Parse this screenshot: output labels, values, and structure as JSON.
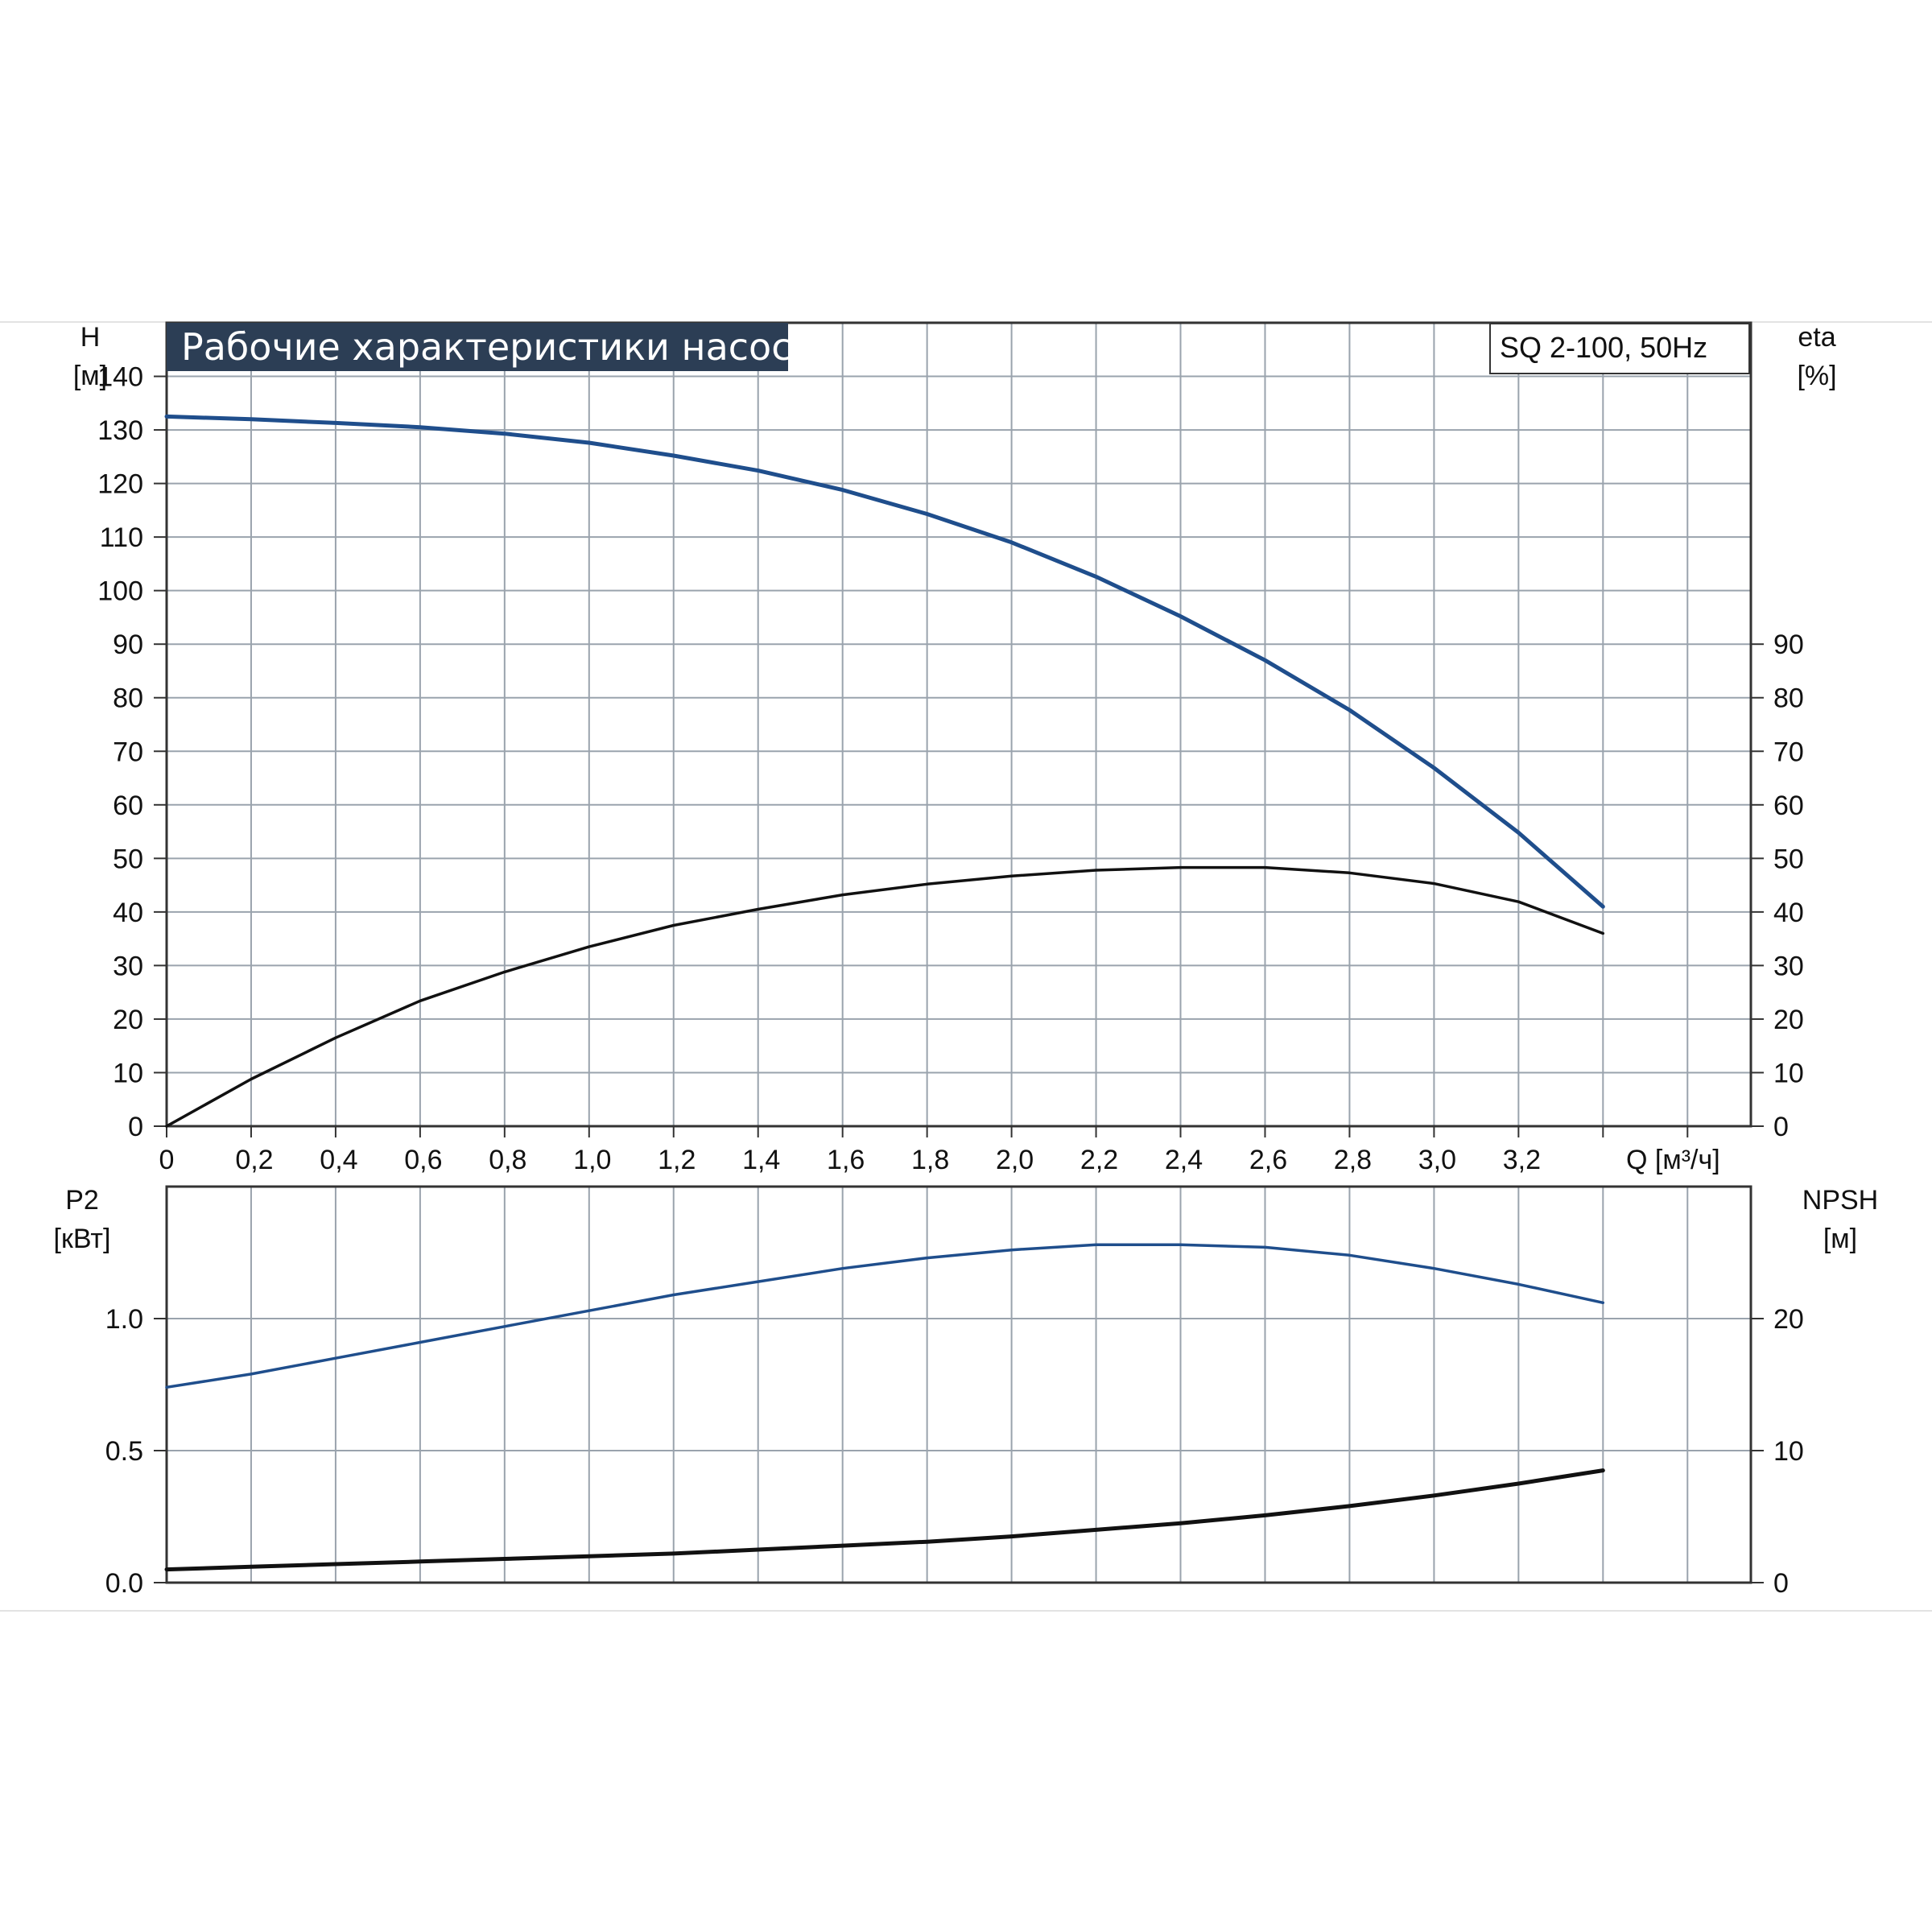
{
  "chart_data": [
    {
      "type": "line",
      "title": "Рабочие характеристики насоса",
      "model": "SQ 2-100, 50Hz",
      "xlabel": "Q [м³/ч]",
      "left_axis": {
        "label_line1": "H",
        "label_line2": "[м]",
        "ticks": [
          "0",
          "10",
          "20",
          "30",
          "40",
          "50",
          "60",
          "70",
          "80",
          "90",
          "100",
          "110",
          "120",
          "130",
          "140"
        ],
        "ylim": [
          0,
          150
        ]
      },
      "right_axis": {
        "label_line1": "eta",
        "label_line2": "[%]",
        "ticks": [
          "0",
          "10",
          "20",
          "30",
          "40",
          "50",
          "60",
          "70",
          "80",
          "90"
        ],
        "ylim": [
          0,
          150
        ]
      },
      "x_ticks": [
        "0",
        "0,2",
        "0,4",
        "0,6",
        "0,8",
        "1,0",
        "1,2",
        "1,4",
        "1,6",
        "1,8",
        "2,0",
        "2,2",
        "2,4",
        "2,6",
        "2,8",
        "3,0",
        "3,2"
      ],
      "xlim": [
        0,
        3.75
      ],
      "grid": true,
      "series": [
        {
          "key": "H",
          "axis": "left",
          "color": "#1f4e8c",
          "x": [
            0,
            0.2,
            0.4,
            0.6,
            0.8,
            1.0,
            1.2,
            1.4,
            1.6,
            1.8,
            2.0,
            2.2,
            2.4,
            2.6,
            2.8,
            3.0,
            3.2,
            3.4
          ],
          "y": [
            132.5,
            132.0,
            131.3,
            130.5,
            129.3,
            127.6,
            125.2,
            122.4,
            118.8,
            114.3,
            109.0,
            102.6,
            95.2,
            87.0,
            77.7,
            66.9,
            54.8,
            41.0
          ]
        },
        {
          "key": "eta",
          "axis": "right",
          "color": "#111111",
          "x": [
            0,
            0.2,
            0.4,
            0.6,
            0.8,
            1.0,
            1.2,
            1.4,
            1.6,
            1.8,
            2.0,
            2.2,
            2.4,
            2.6,
            2.8,
            3.0,
            3.2,
            3.4
          ],
          "y": [
            0,
            8.8,
            16.5,
            23.4,
            28.8,
            33.5,
            37.5,
            40.5,
            43.2,
            45.2,
            46.7,
            47.8,
            48.3,
            48.3,
            47.3,
            45.3,
            41.9,
            36.0
          ]
        }
      ]
    },
    {
      "type": "line",
      "xlim": [
        0,
        3.75
      ],
      "left_axis": {
        "label_line1": "P2",
        "label_line2": "[кВт]",
        "ticks": [
          "0.0",
          "0.5",
          "1.0"
        ],
        "ylim": [
          0,
          1.5
        ]
      },
      "right_axis": {
        "label_line1": "NPSH",
        "label_line2": "[м]",
        "ticks": [
          "0",
          "10",
          "20"
        ],
        "ylim": [
          0,
          30
        ]
      },
      "grid": true,
      "series": [
        {
          "key": "P2",
          "axis": "left",
          "color": "#1f4e8c",
          "x": [
            0,
            0.2,
            0.4,
            0.6,
            0.8,
            1.0,
            1.2,
            1.4,
            1.6,
            1.8,
            2.0,
            2.2,
            2.4,
            2.6,
            2.8,
            3.0,
            3.2,
            3.4
          ],
          "y": [
            0.74,
            0.79,
            0.85,
            0.91,
            0.97,
            1.03,
            1.09,
            1.14,
            1.19,
            1.23,
            1.26,
            1.28,
            1.28,
            1.27,
            1.24,
            1.19,
            1.13,
            1.06
          ]
        },
        {
          "key": "NPSH",
          "axis": "right",
          "color": "#111111",
          "x": [
            0,
            0.2,
            0.4,
            0.6,
            0.8,
            1.0,
            1.2,
            1.4,
            1.6,
            1.8,
            2.0,
            2.2,
            2.4,
            2.6,
            2.8,
            3.0,
            3.2,
            3.4
          ],
          "y": [
            1.0,
            1.2,
            1.4,
            1.6,
            1.8,
            2.0,
            2.2,
            2.5,
            2.8,
            3.1,
            3.5,
            4.0,
            4.5,
            5.1,
            5.8,
            6.6,
            7.5,
            8.5
          ]
        }
      ]
    }
  ]
}
